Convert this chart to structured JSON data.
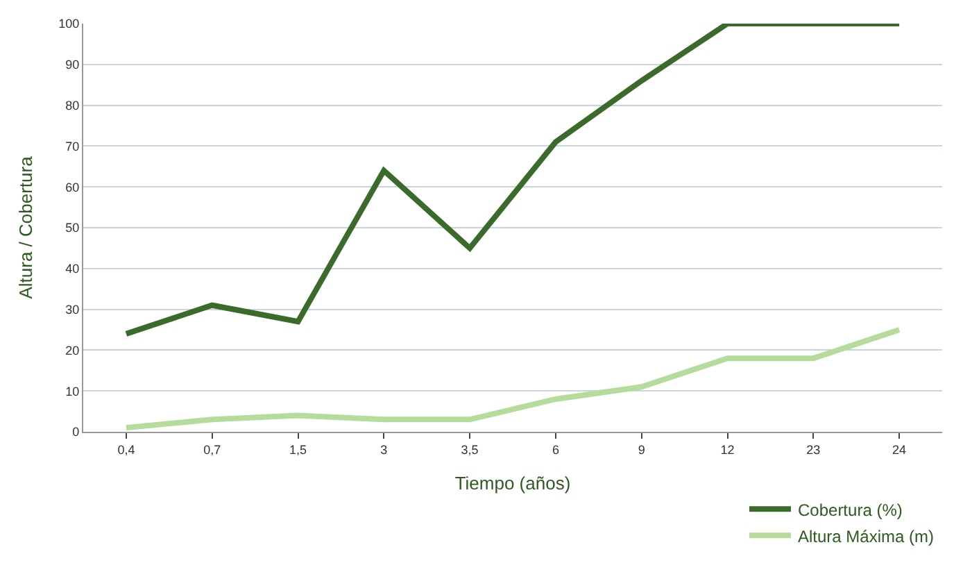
{
  "chart_data": {
    "type": "line",
    "xlabel": "Tiempo (años)",
    "ylabel": "Altura / Cobertura",
    "categories": [
      "0,4",
      "0,7",
      "1,5",
      "3",
      "3,5",
      "6",
      "9",
      "12",
      "23",
      "24"
    ],
    "series": [
      {
        "name": "Cobertura (%)",
        "color": "#3a6b2a",
        "values": [
          24,
          31,
          27,
          64,
          45,
          71,
          86,
          100,
          100,
          100
        ]
      },
      {
        "name": "Altura Máxima (m)",
        "color": "#b5dc9a",
        "values": [
          1,
          3,
          4,
          3,
          3,
          8,
          11,
          18,
          18,
          25
        ]
      }
    ],
    "ylim": [
      0,
      100
    ],
    "yticks": [
      0,
      10,
      20,
      30,
      40,
      50,
      60,
      70,
      80,
      90,
      100
    ],
    "grid": "y",
    "legend": "bottom right",
    "marker": "none",
    "line_style": "solid"
  }
}
